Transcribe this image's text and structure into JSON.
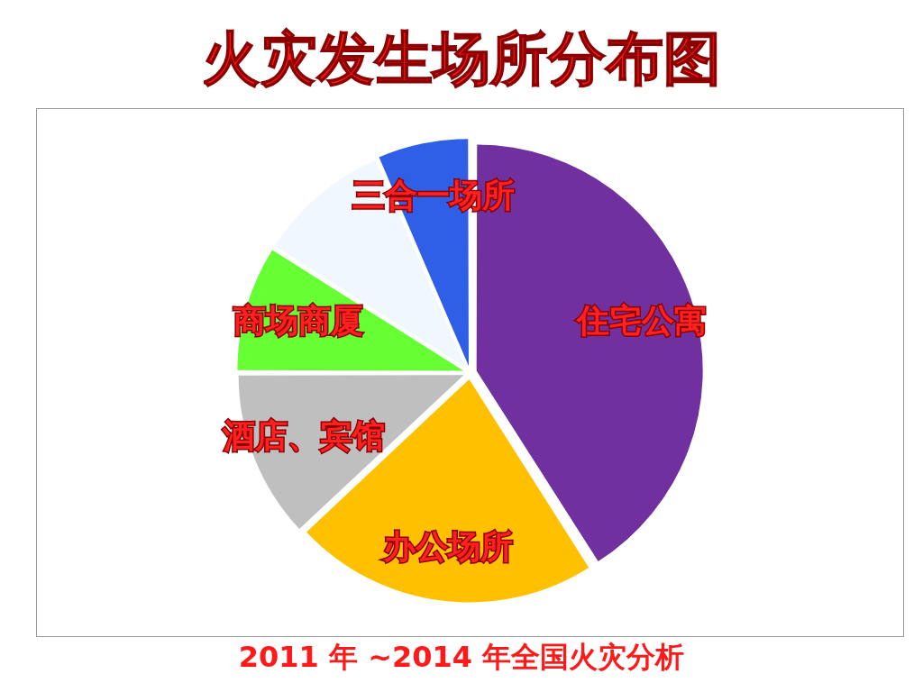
{
  "chart_data": {
    "type": "pie",
    "title": "火灾发生场所分布图",
    "categories": [
      "住宅公寓",
      "办公场所",
      "酒店、宾馆",
      "商场商厦",
      null,
      "三合一场所"
    ],
    "values": [
      41,
      22,
      12,
      9,
      9.5,
      6.5
    ],
    "colors": [
      "#7030a0",
      "#ffc000",
      "#bfbfbf",
      "#66ff33",
      "#f0f7ff",
      "#2e5fe6"
    ],
    "legend": false,
    "annotations": [
      "2011 年 ~2014 年全国火灾分析"
    ]
  }
}
